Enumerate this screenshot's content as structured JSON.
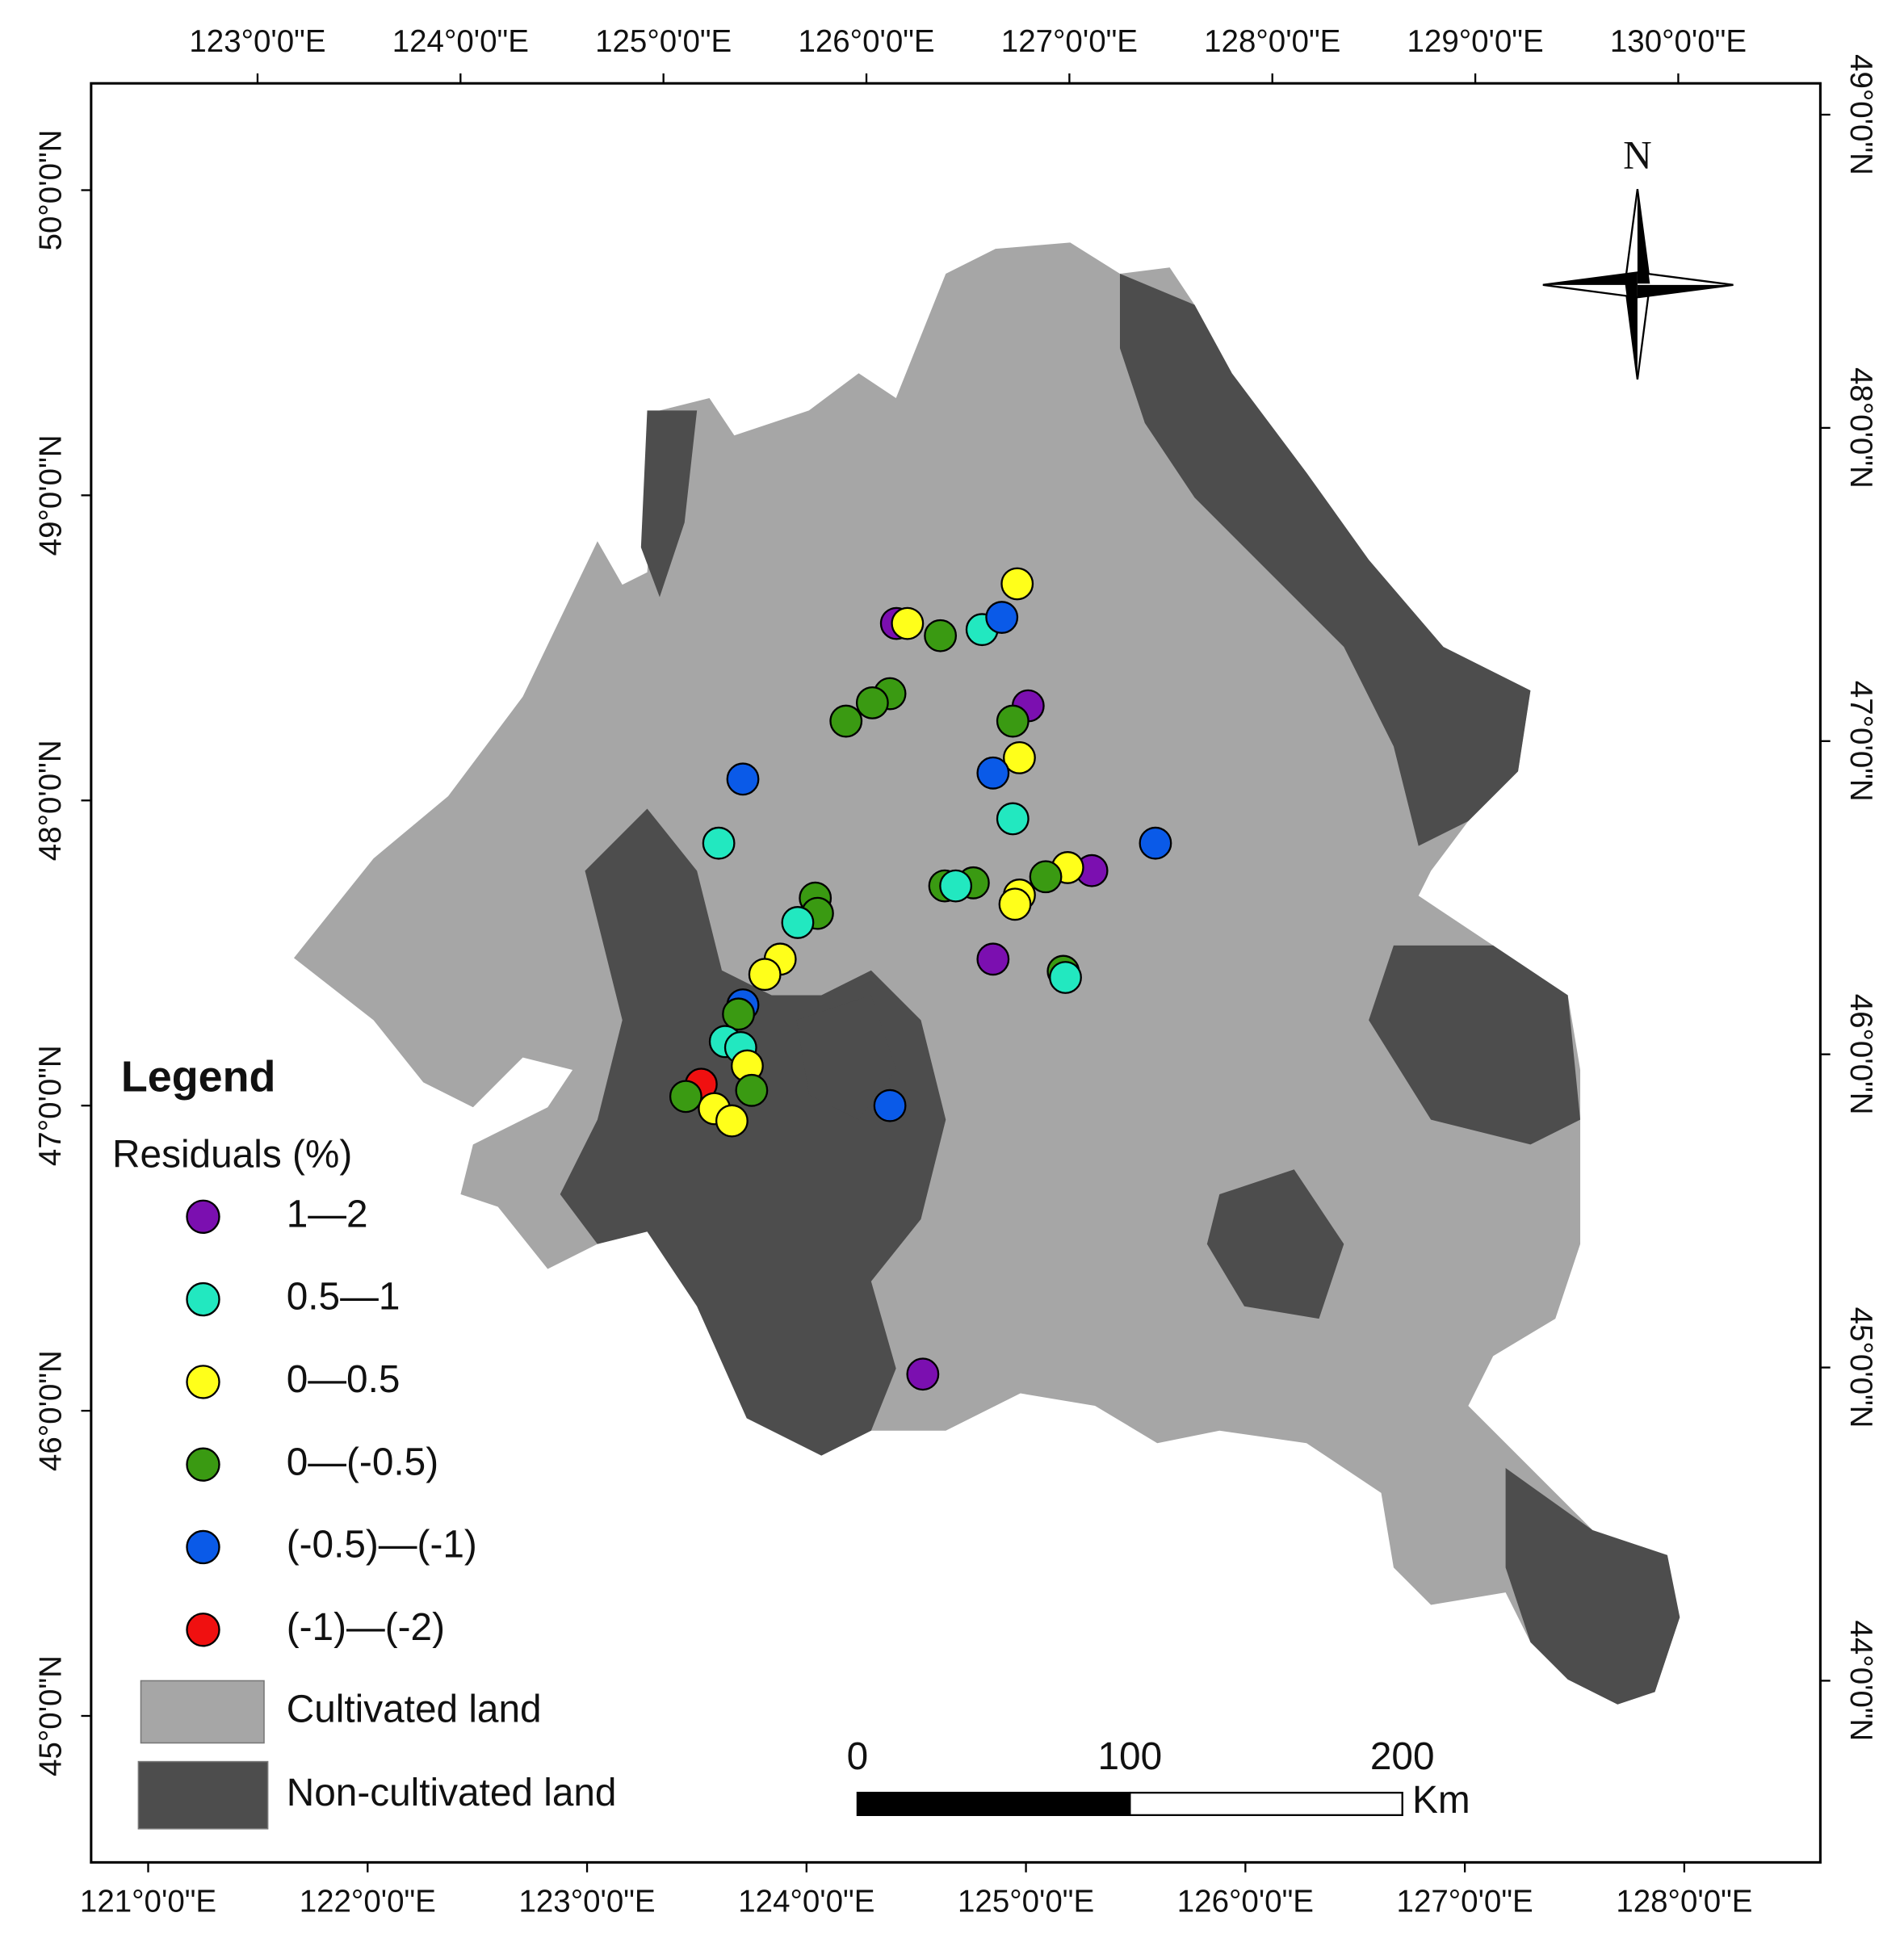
{
  "map": {
    "bottom_ticks": [
      {
        "value": 121,
        "label": "121°0'0\"E"
      },
      {
        "value": 122,
        "label": "122°0'0\"E"
      },
      {
        "value": 123,
        "label": "123°0'0\"E"
      },
      {
        "value": 124,
        "label": "124°0'0\"E"
      },
      {
        "value": 125,
        "label": "125°0'0\"E"
      },
      {
        "value": 126,
        "label": "126°0'0\"E"
      },
      {
        "value": 127,
        "label": "127°0'0\"E"
      },
      {
        "value": 128,
        "label": "128°0'0\"E"
      }
    ],
    "xlim": [
      120.74,
      128.62
    ],
    "left_ticks": [
      {
        "value": 50,
        "label": "50°0'0\"N"
      },
      {
        "value": 49,
        "label": "49°0'0\"N"
      },
      {
        "value": 48,
        "label": "48°0'0\"N"
      },
      {
        "value": 47,
        "label": "47°0'0\"N"
      },
      {
        "value": 46,
        "label": "46°0'0\"N"
      },
      {
        "value": 45,
        "label": "45°0'0\"N"
      }
    ],
    "ylim": [
      44.52,
      50.35
    ],
    "top_ticks": [
      {
        "value": 123,
        "label": "123°0'0\"E"
      },
      {
        "value": 124,
        "label": "124°0'0\"E"
      },
      {
        "value": 125,
        "label": "125°0'0\"E"
      },
      {
        "value": 126,
        "label": "126°0'0\"E"
      },
      {
        "value": 127,
        "label": "127°0'0\"E"
      },
      {
        "value": 128,
        "label": "128°0'0\"E"
      },
      {
        "value": 129,
        "label": "129°0'0\"E"
      },
      {
        "value": 130,
        "label": "130°0'0\"E"
      }
    ],
    "top_xlim": [
      122.18,
      130.7
    ],
    "right_ticks": [
      {
        "value": 49,
        "label": "49°0'0\"N"
      },
      {
        "value": 48,
        "label": "48°0'0\"N"
      },
      {
        "value": 47,
        "label": "47°0'0\"N"
      },
      {
        "value": 46,
        "label": "46°0'0\"N"
      },
      {
        "value": 45,
        "label": "45°0'0\"N"
      },
      {
        "value": 44,
        "label": "44°0'0\"N"
      }
    ],
    "right_ylim": [
      49.1,
      43.42
    ],
    "north_label": "N",
    "legend": {
      "title": "Legend",
      "subtitle": "Residuals (%)",
      "classes": [
        {
          "label": "1—2",
          "color": "#7b0fb0"
        },
        {
          "label": "0.5—1",
          "color": "#22e8c0"
        },
        {
          "label": "0—0.5",
          "color": "#ffff1a"
        },
        {
          "label": "0—(-0.5)",
          "color": "#3a9a12"
        },
        {
          "label": "(-0.5)—(-1)",
          "color": "#0a5ae8"
        },
        {
          "label": "(-1)—(-2)",
          "color": "#f01010"
        }
      ],
      "land": [
        {
          "label": "Cultivated land",
          "color": "#a6a6a6"
        },
        {
          "label": "Non-cultivated land",
          "color": "#4d4d4d"
        }
      ]
    },
    "scale_bar": {
      "ticks": [
        0,
        100,
        200
      ],
      "unit": "Km"
    },
    "points": [
      {
        "lon": 124.41,
        "lat": 48.58,
        "class": "1—2"
      },
      {
        "lon": 124.46,
        "lat": 48.58,
        "class": "0—0.5"
      },
      {
        "lon": 124.61,
        "lat": 48.54,
        "class": "0—(-0.5)"
      },
      {
        "lon": 124.8,
        "lat": 48.56,
        "class": "0.5—1"
      },
      {
        "lon": 124.89,
        "lat": 48.6,
        "class": "(-0.5)—(-1)"
      },
      {
        "lon": 124.96,
        "lat": 48.71,
        "class": "0—0.5"
      },
      {
        "lon": 124.38,
        "lat": 48.35,
        "class": "0—(-0.5)"
      },
      {
        "lon": 124.3,
        "lat": 48.32,
        "class": "0—(-0.5)"
      },
      {
        "lon": 124.18,
        "lat": 48.26,
        "class": "0—(-0.5)"
      },
      {
        "lon": 125.01,
        "lat": 48.31,
        "class": "1—2"
      },
      {
        "lon": 124.94,
        "lat": 48.26,
        "class": "0—(-0.5)"
      },
      {
        "lon": 124.97,
        "lat": 48.14,
        "class": "0—0.5"
      },
      {
        "lon": 124.85,
        "lat": 48.09,
        "class": "(-0.5)—(-1)"
      },
      {
        "lon": 123.71,
        "lat": 48.07,
        "class": "(-0.5)—(-1)"
      },
      {
        "lon": 124.94,
        "lat": 47.94,
        "class": "0.5—1"
      },
      {
        "lon": 123.6,
        "lat": 47.86,
        "class": "0.5—1"
      },
      {
        "lon": 125.59,
        "lat": 47.86,
        "class": "(-0.5)—(-1)"
      },
      {
        "lon": 125.3,
        "lat": 47.77,
        "class": "1—2"
      },
      {
        "lon": 125.19,
        "lat": 47.78,
        "class": "0—0.5"
      },
      {
        "lon": 125.09,
        "lat": 47.75,
        "class": "0—(-0.5)"
      },
      {
        "lon": 124.97,
        "lat": 47.69,
        "class": "0—0.5"
      },
      {
        "lon": 124.95,
        "lat": 47.66,
        "class": "0—0.5"
      },
      {
        "lon": 124.76,
        "lat": 47.73,
        "class": "0—(-0.5)"
      },
      {
        "lon": 124.63,
        "lat": 47.72,
        "class": "0—(-0.5)"
      },
      {
        "lon": 124.68,
        "lat": 47.72,
        "class": "0.5—1"
      },
      {
        "lon": 124.04,
        "lat": 47.68,
        "class": "0—(-0.5)"
      },
      {
        "lon": 124.05,
        "lat": 47.63,
        "class": "0—(-0.5)"
      },
      {
        "lon": 123.96,
        "lat": 47.6,
        "class": "0.5—1"
      },
      {
        "lon": 123.88,
        "lat": 47.48,
        "class": "0—0.5"
      },
      {
        "lon": 123.81,
        "lat": 47.43,
        "class": "0—0.5"
      },
      {
        "lon": 124.85,
        "lat": 47.48,
        "class": "1—2"
      },
      {
        "lon": 125.17,
        "lat": 47.44,
        "class": "0—(-0.5)"
      },
      {
        "lon": 125.18,
        "lat": 47.42,
        "class": "0.5—1"
      },
      {
        "lon": 123.71,
        "lat": 47.33,
        "class": "(-0.5)—(-1)"
      },
      {
        "lon": 123.69,
        "lat": 47.3,
        "class": "0—(-0.5)"
      },
      {
        "lon": 123.63,
        "lat": 47.21,
        "class": "0.5—1"
      },
      {
        "lon": 123.7,
        "lat": 47.19,
        "class": "0.5—1"
      },
      {
        "lon": 123.73,
        "lat": 47.13,
        "class": "0—0.5"
      },
      {
        "lon": 123.75,
        "lat": 47.05,
        "class": "0—(-0.5)"
      },
      {
        "lon": 123.52,
        "lat": 47.07,
        "class": "(-1)—(-2)"
      },
      {
        "lon": 123.45,
        "lat": 47.03,
        "class": "0—(-0.5)"
      },
      {
        "lon": 123.58,
        "lat": 46.99,
        "class": "0—0.5"
      },
      {
        "lon": 123.66,
        "lat": 46.95,
        "class": "0—0.5"
      },
      {
        "lon": 124.38,
        "lat": 47.0,
        "class": "(-0.5)—(-1)"
      },
      {
        "lon": 124.53,
        "lat": 46.12,
        "class": "1—2"
      }
    ]
  }
}
